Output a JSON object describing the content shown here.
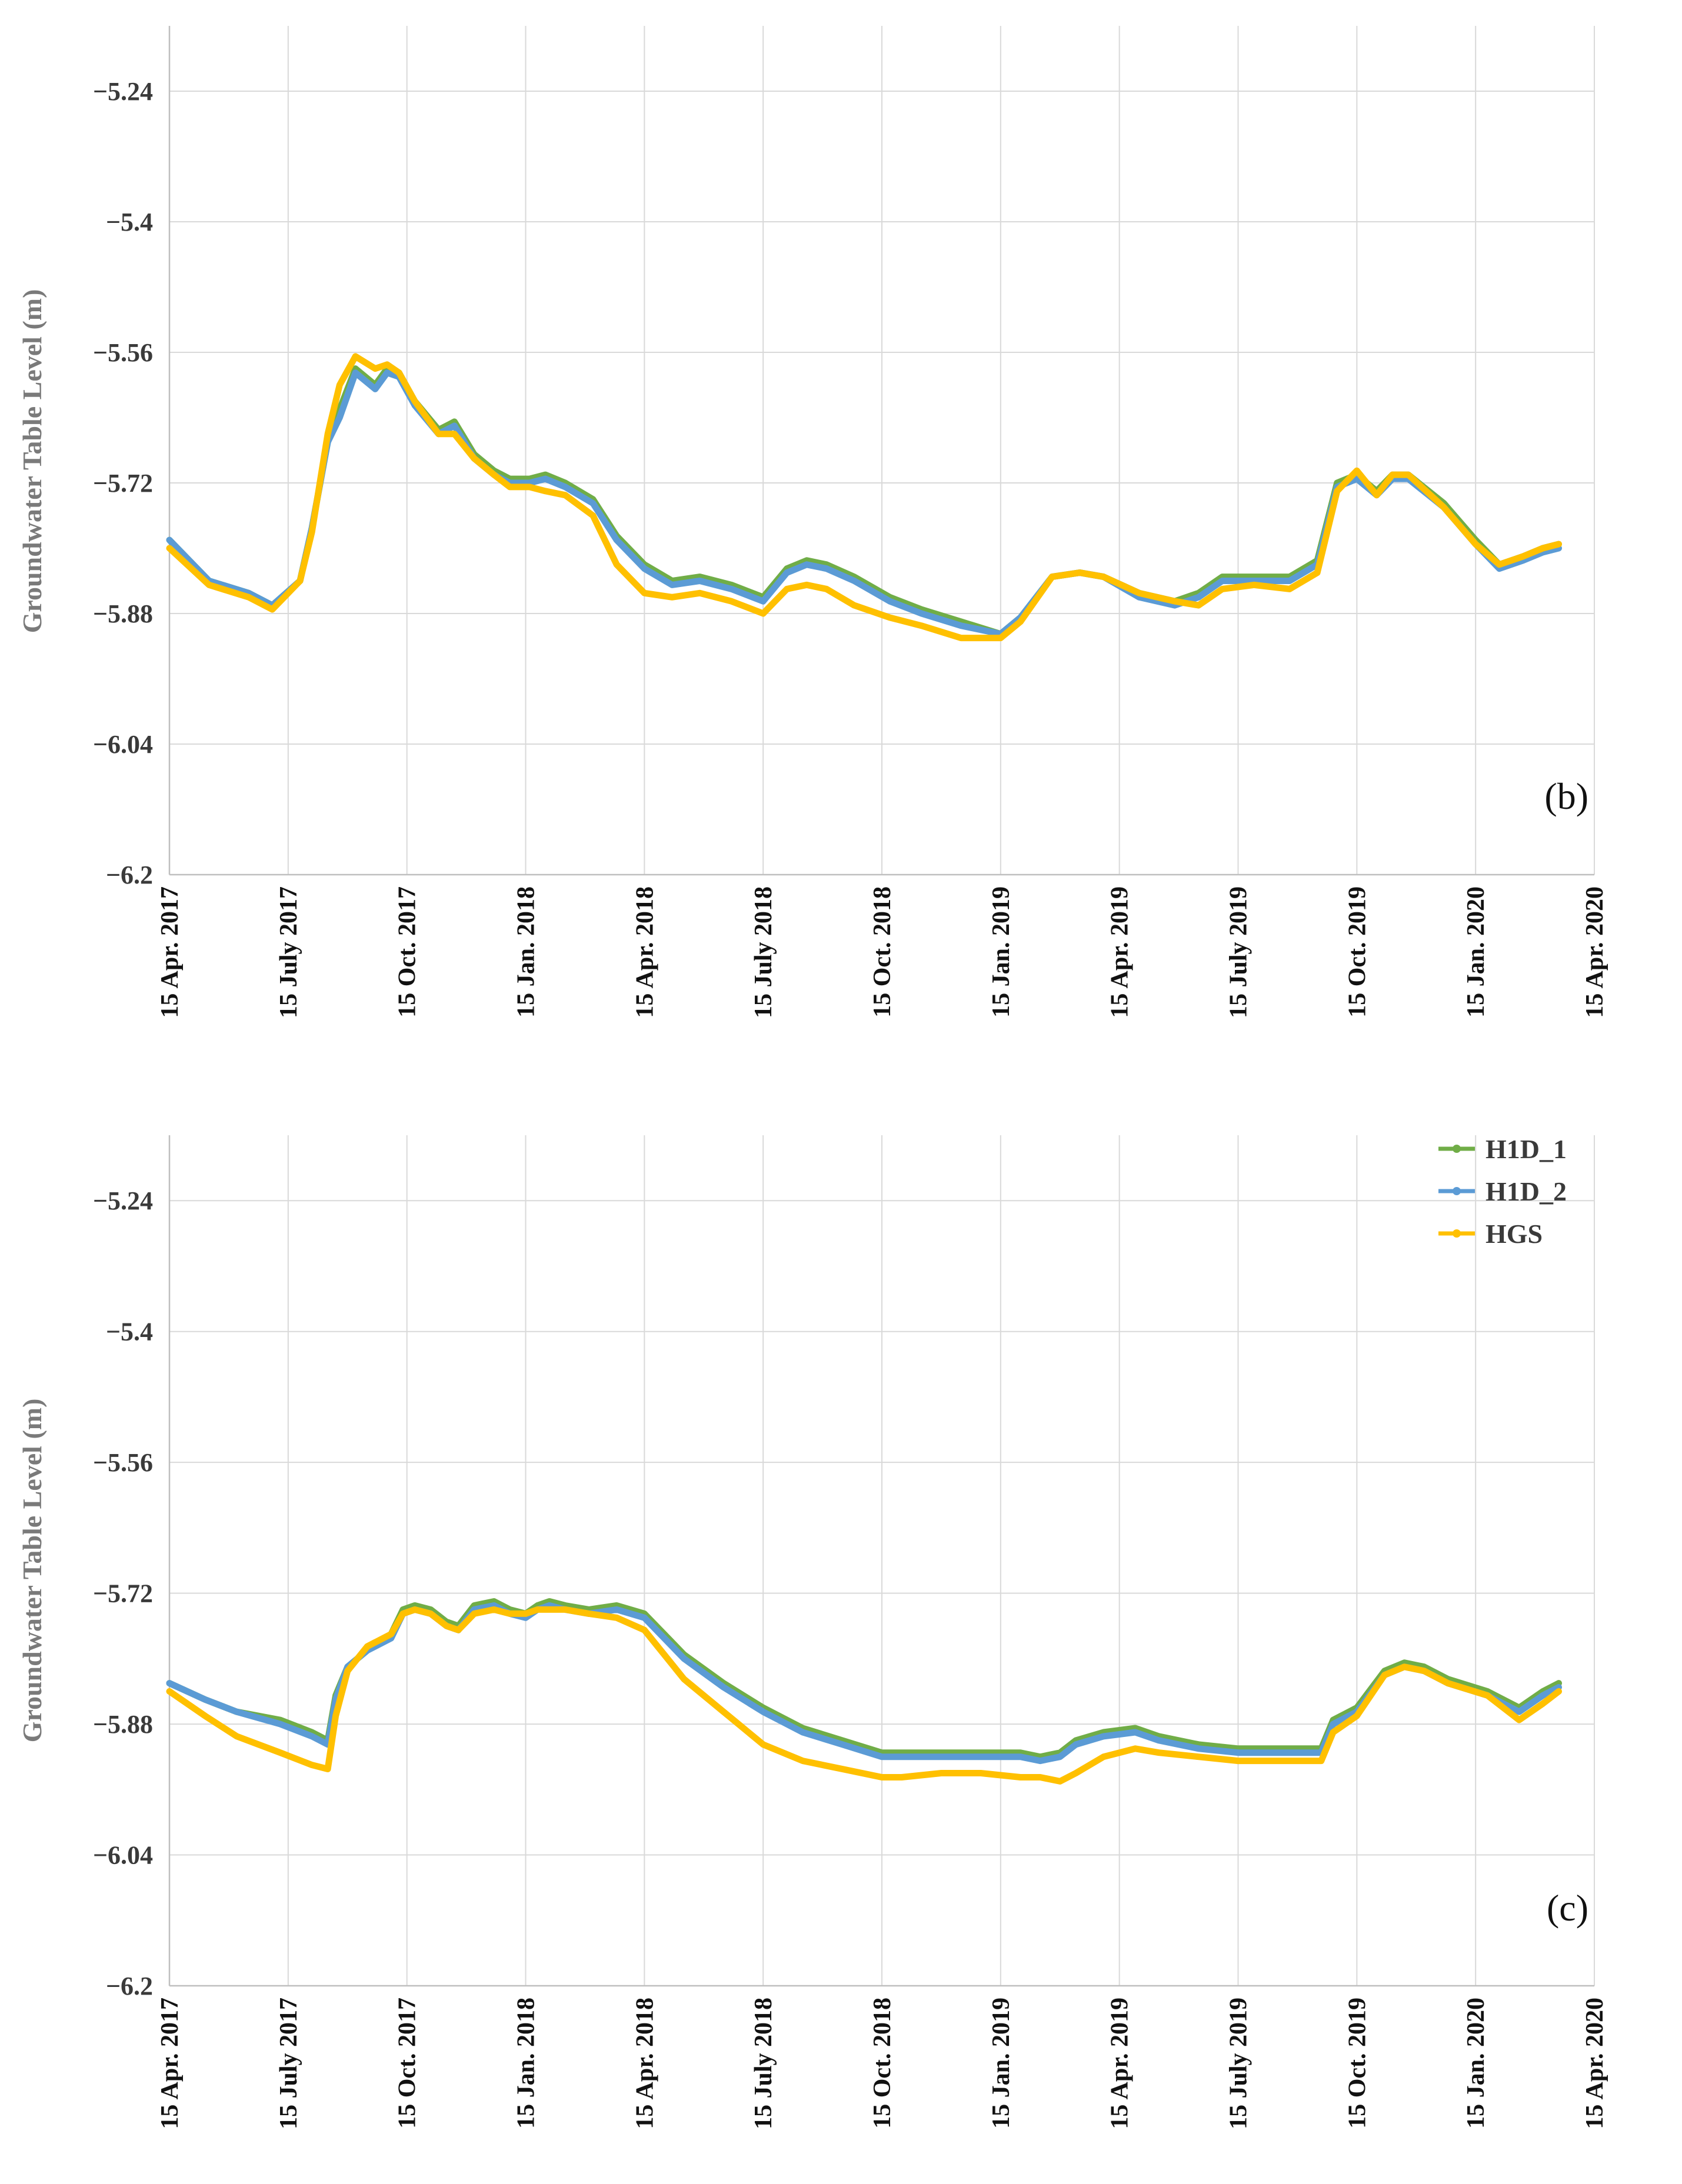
{
  "legend": [
    {
      "name": "H1D_1",
      "color": "#70ad47"
    },
    {
      "name": "H1D_2",
      "color": "#5b9bd5"
    },
    {
      "name": "HGS",
      "color": "#ffc000"
    }
  ],
  "chart_data": [
    {
      "type": "line",
      "panel": "(b)",
      "title": "",
      "xlabel": "",
      "ylabel": "Groundwater Table Level (m)",
      "ylim": [
        -6.2,
        -5.16
      ],
      "yticks": [
        -5.24,
        -5.4,
        -5.56,
        -5.72,
        -5.88,
        -6.04,
        -6.2
      ],
      "ytick_labels": [
        "−5.24",
        "−5.4",
        "−5.56",
        "−5.72",
        "−5.88",
        "−6.04",
        "−6.2"
      ],
      "x_unit": "months since 15 Apr. 2017",
      "xlim": [
        0,
        36
      ],
      "xticks": [
        0,
        3,
        6,
        9,
        12,
        15,
        18,
        21,
        24,
        27,
        30,
        33,
        36
      ],
      "xtick_labels": [
        "15 Apr. 2017",
        "15 July 2017",
        "15 Oct. 2017",
        "15 Jan. 2018",
        "15 Apr. 2018",
        "15 July 2018",
        "15 Oct. 2018",
        "15 Jan. 2019",
        "15 Apr. 2019",
        "15 July 2019",
        "15 Oct. 2019",
        "15 Jan. 2020",
        "15 Apr. 2020"
      ],
      "series": [
        {
          "name": "H1D_1",
          "color": "#70ad47",
          "x": [
            0,
            1,
            2,
            2.6,
            3.3,
            3.6,
            4.0,
            4.3,
            4.7,
            5.2,
            5.5,
            5.8,
            6.2,
            6.8,
            7.2,
            7.7,
            8.2,
            8.6,
            9.1,
            9.5,
            10.0,
            10.7,
            11.3,
            12.0,
            12.7,
            13.4,
            14.2,
            15.0,
            15.6,
            16.1,
            16.6,
            17.3,
            18.2,
            19.0,
            20.0,
            21.0,
            21.5,
            22.3,
            23.0,
            23.6,
            24.5,
            25.4,
            26.0,
            26.6,
            27.4,
            28.3,
            29.0,
            29.5,
            30.0,
            30.5,
            30.9,
            31.3,
            32.2,
            33.0,
            33.6,
            34.2,
            34.7,
            35.1
          ],
          "y": [
            -5.79,
            -5.84,
            -5.855,
            -5.87,
            -5.84,
            -5.775,
            -5.67,
            -5.63,
            -5.58,
            -5.6,
            -5.58,
            -5.585,
            -5.62,
            -5.655,
            -5.645,
            -5.685,
            -5.705,
            -5.715,
            -5.715,
            -5.71,
            -5.72,
            -5.74,
            -5.785,
            -5.82,
            -5.84,
            -5.835,
            -5.845,
            -5.86,
            -5.825,
            -5.815,
            -5.82,
            -5.835,
            -5.86,
            -5.875,
            -5.89,
            -5.905,
            -5.885,
            -5.835,
            -5.83,
            -5.835,
            -5.855,
            -5.865,
            -5.855,
            -5.835,
            -5.835,
            -5.835,
            -5.815,
            -5.72,
            -5.71,
            -5.73,
            -5.71,
            -5.71,
            -5.745,
            -5.79,
            -5.82,
            -5.81,
            -5.8,
            -5.795
          ]
        },
        {
          "name": "H1D_2",
          "color": "#5b9bd5",
          "x": [
            0,
            1,
            2,
            2.6,
            3.3,
            3.6,
            4.0,
            4.3,
            4.7,
            5.2,
            5.5,
            5.8,
            6.2,
            6.8,
            7.2,
            7.7,
            8.2,
            8.6,
            9.1,
            9.5,
            10.0,
            10.7,
            11.3,
            12.0,
            12.7,
            13.4,
            14.2,
            15.0,
            15.6,
            16.1,
            16.6,
            17.3,
            18.2,
            19.0,
            20.0,
            21.0,
            21.5,
            22.3,
            23.0,
            23.6,
            24.5,
            25.4,
            26.0,
            26.6,
            27.4,
            28.3,
            29.0,
            29.5,
            30.0,
            30.5,
            30.9,
            31.3,
            32.2,
            33.0,
            33.6,
            34.2,
            34.7,
            35.1
          ],
          "y": [
            -5.79,
            -5.84,
            -5.855,
            -5.87,
            -5.84,
            -5.775,
            -5.67,
            -5.64,
            -5.585,
            -5.605,
            -5.585,
            -5.59,
            -5.625,
            -5.66,
            -5.65,
            -5.69,
            -5.71,
            -5.72,
            -5.72,
            -5.715,
            -5.725,
            -5.745,
            -5.79,
            -5.825,
            -5.845,
            -5.84,
            -5.85,
            -5.865,
            -5.83,
            -5.82,
            -5.825,
            -5.84,
            -5.865,
            -5.88,
            -5.895,
            -5.905,
            -5.885,
            -5.835,
            -5.83,
            -5.835,
            -5.86,
            -5.87,
            -5.86,
            -5.84,
            -5.84,
            -5.84,
            -5.82,
            -5.725,
            -5.715,
            -5.735,
            -5.715,
            -5.715,
            -5.75,
            -5.795,
            -5.825,
            -5.815,
            -5.805,
            -5.8
          ]
        },
        {
          "name": "HGS",
          "color": "#ffc000",
          "x": [
            0,
            1,
            2,
            2.6,
            3.3,
            3.6,
            4.0,
            4.3,
            4.7,
            5.2,
            5.5,
            5.8,
            6.2,
            6.8,
            7.2,
            7.7,
            8.2,
            8.6,
            9.1,
            9.5,
            10.0,
            10.7,
            11.3,
            12.0,
            12.7,
            13.4,
            14.2,
            15.0,
            15.6,
            16.1,
            16.6,
            17.3,
            18.2,
            19.0,
            20.0,
            21.0,
            21.5,
            22.3,
            23.0,
            23.6,
            24.5,
            25.4,
            26.0,
            26.6,
            27.4,
            28.3,
            29.0,
            29.5,
            30.0,
            30.5,
            30.9,
            31.3,
            32.2,
            33.0,
            33.6,
            34.2,
            34.7,
            35.1
          ],
          "y": [
            -5.8,
            -5.845,
            -5.86,
            -5.875,
            -5.84,
            -5.78,
            -5.66,
            -5.6,
            -5.565,
            -5.58,
            -5.575,
            -5.585,
            -5.62,
            -5.66,
            -5.66,
            -5.69,
            -5.71,
            -5.725,
            -5.725,
            -5.73,
            -5.735,
            -5.76,
            -5.82,
            -5.855,
            -5.86,
            -5.855,
            -5.865,
            -5.88,
            -5.85,
            -5.845,
            -5.85,
            -5.87,
            -5.885,
            -5.895,
            -5.91,
            -5.91,
            -5.89,
            -5.835,
            -5.83,
            -5.835,
            -5.855,
            -5.865,
            -5.87,
            -5.85,
            -5.845,
            -5.85,
            -5.83,
            -5.73,
            -5.705,
            -5.735,
            -5.71,
            -5.71,
            -5.75,
            -5.795,
            -5.82,
            -5.81,
            -5.8,
            -5.795
          ]
        }
      ]
    },
    {
      "type": "line",
      "panel": "(c)",
      "title": "",
      "xlabel": "",
      "ylabel": "Groundwater Table Level (m)",
      "ylim": [
        -6.2,
        -5.16
      ],
      "yticks": [
        -5.24,
        -5.4,
        -5.56,
        -5.72,
        -5.88,
        -6.04,
        -6.2
      ],
      "ytick_labels": [
        "−5.24",
        "−5.4",
        "−5.56",
        "−5.72",
        "−5.88",
        "−6.04",
        "−6.2"
      ],
      "x_unit": "months since 15 Apr. 2017",
      "xlim": [
        0,
        36
      ],
      "xticks": [
        0,
        3,
        6,
        9,
        12,
        15,
        18,
        21,
        24,
        27,
        30,
        33,
        36
      ],
      "xtick_labels": [
        "15 Apr. 2017",
        "15 July 2017",
        "15 Oct. 2017",
        "15 Jan. 2018",
        "15 Apr. 2018",
        "15 July 2018",
        "15 Oct. 2018",
        "15 Jan. 2019",
        "15 Apr. 2019",
        "15 July 2019",
        "15 Oct. 2019",
        "15 Jan. 2020",
        "15 Apr. 2020"
      ],
      "series": [
        {
          "name": "H1D_1",
          "color": "#70ad47",
          "x": [
            0,
            0.9,
            1.7,
            2.8,
            3.6,
            4.0,
            4.2,
            4.5,
            5.0,
            5.6,
            5.9,
            6.2,
            6.6,
            7.0,
            7.3,
            7.7,
            8.2,
            8.6,
            9.0,
            9.3,
            9.6,
            10.0,
            10.6,
            11.3,
            12.0,
            13.0,
            14.0,
            15.0,
            16.0,
            17.0,
            18.0,
            18.5,
            19.5,
            20.5,
            21.5,
            22.0,
            22.5,
            22.9,
            23.6,
            24.4,
            25.0,
            26.0,
            27.0,
            27.7,
            28.6,
            29.1,
            29.4,
            30.0,
            30.7,
            31.2,
            31.7,
            32.3,
            33.3,
            34.1,
            34.7,
            35.1
          ],
          "y": [
            -5.83,
            -5.85,
            -5.865,
            -5.875,
            -5.89,
            -5.9,
            -5.845,
            -5.81,
            -5.79,
            -5.77,
            -5.74,
            -5.735,
            -5.74,
            -5.755,
            -5.76,
            -5.735,
            -5.73,
            -5.74,
            -5.745,
            -5.735,
            -5.73,
            -5.735,
            -5.74,
            -5.735,
            -5.745,
            -5.795,
            -5.83,
            -5.86,
            -5.885,
            -5.9,
            -5.915,
            -5.915,
            -5.915,
            -5.915,
            -5.915,
            -5.92,
            -5.915,
            -5.9,
            -5.89,
            -5.885,
            -5.895,
            -5.905,
            -5.91,
            -5.91,
            -5.91,
            -5.91,
            -5.875,
            -5.86,
            -5.815,
            -5.805,
            -5.81,
            -5.825,
            -5.84,
            -5.86,
            -5.84,
            -5.83
          ]
        },
        {
          "name": "H1D_2",
          "color": "#5b9bd5",
          "x": [
            0,
            0.9,
            1.7,
            2.8,
            3.6,
            4.0,
            4.2,
            4.5,
            5.0,
            5.6,
            5.9,
            6.2,
            6.6,
            7.0,
            7.3,
            7.7,
            8.2,
            8.6,
            9.0,
            9.3,
            9.6,
            10.0,
            10.6,
            11.3,
            12.0,
            13.0,
            14.0,
            15.0,
            16.0,
            17.0,
            18.0,
            18.5,
            19.5,
            20.5,
            21.5,
            22.0,
            22.5,
            22.9,
            23.6,
            24.4,
            25.0,
            26.0,
            27.0,
            27.7,
            28.6,
            29.1,
            29.4,
            30.0,
            30.7,
            31.2,
            31.7,
            32.3,
            33.3,
            34.1,
            34.7,
            35.1
          ],
          "y": [
            -5.83,
            -5.85,
            -5.865,
            -5.88,
            -5.895,
            -5.905,
            -5.85,
            -5.81,
            -5.79,
            -5.775,
            -5.745,
            -5.74,
            -5.745,
            -5.76,
            -5.765,
            -5.74,
            -5.735,
            -5.745,
            -5.75,
            -5.74,
            -5.735,
            -5.74,
            -5.745,
            -5.74,
            -5.75,
            -5.8,
            -5.835,
            -5.865,
            -5.89,
            -5.905,
            -5.92,
            -5.92,
            -5.92,
            -5.92,
            -5.92,
            -5.925,
            -5.92,
            -5.905,
            -5.895,
            -5.89,
            -5.9,
            -5.91,
            -5.915,
            -5.915,
            -5.915,
            -5.915,
            -5.88,
            -5.865,
            -5.82,
            -5.81,
            -5.815,
            -5.83,
            -5.845,
            -5.865,
            -5.845,
            -5.835
          ]
        },
        {
          "name": "HGS",
          "color": "#ffc000",
          "x": [
            0,
            0.9,
            1.7,
            2.8,
            3.6,
            4.0,
            4.2,
            4.5,
            5.0,
            5.6,
            5.9,
            6.2,
            6.6,
            7.0,
            7.3,
            7.7,
            8.2,
            8.6,
            9.0,
            9.3,
            9.6,
            10.0,
            10.6,
            11.3,
            12.0,
            13.0,
            14.0,
            15.0,
            16.0,
            17.0,
            18.0,
            18.5,
            19.5,
            20.5,
            21.5,
            22.0,
            22.5,
            22.9,
            23.6,
            24.4,
            25.0,
            26.0,
            27.0,
            27.7,
            28.6,
            29.1,
            29.4,
            30.0,
            30.7,
            31.2,
            31.7,
            32.3,
            33.3,
            34.1,
            34.7,
            35.1
          ],
          "y": [
            -5.84,
            -5.87,
            -5.895,
            -5.915,
            -5.93,
            -5.935,
            -5.87,
            -5.815,
            -5.785,
            -5.77,
            -5.745,
            -5.74,
            -5.745,
            -5.76,
            -5.765,
            -5.745,
            -5.74,
            -5.745,
            -5.745,
            -5.74,
            -5.74,
            -5.74,
            -5.745,
            -5.75,
            -5.765,
            -5.825,
            -5.865,
            -5.905,
            -5.925,
            -5.935,
            -5.945,
            -5.945,
            -5.94,
            -5.94,
            -5.945,
            -5.945,
            -5.95,
            -5.94,
            -5.92,
            -5.91,
            -5.915,
            -5.92,
            -5.925,
            -5.925,
            -5.925,
            -5.925,
            -5.89,
            -5.87,
            -5.82,
            -5.81,
            -5.815,
            -5.83,
            -5.845,
            -5.875,
            -5.855,
            -5.84
          ]
        }
      ]
    }
  ]
}
